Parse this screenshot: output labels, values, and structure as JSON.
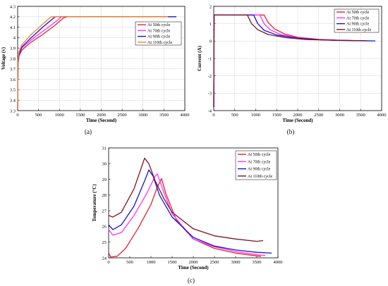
{
  "chart_data": [
    {
      "id": "voltage",
      "type": "line",
      "caption": "(a)",
      "xlabel": "Time (Second)",
      "ylabel": "Voltage (v)",
      "xlim": [
        0,
        4000
      ],
      "ylim": [
        3.3,
        4.3
      ],
      "xticks": [
        0,
        500,
        1000,
        1500,
        2000,
        2500,
        3000,
        3500,
        4000
      ],
      "yticks": [
        3.3,
        3.4,
        3.5,
        3.6,
        3.7,
        3.8,
        3.9,
        4.0,
        4.1,
        4.2,
        4.3
      ],
      "ytick_labels": [
        "3.3",
        "3.4",
        "3.5",
        "3.6",
        "3.7",
        "3.8",
        "3.9",
        "4",
        "4.1",
        "4.2",
        "4.3"
      ],
      "grid": true,
      "legend_position": "top-right",
      "series": [
        {
          "name": "At 50th cycle",
          "color": "#e8212b",
          "x": [
            0,
            10,
            30,
            100,
            300,
            600,
            900,
            1100,
            1200,
            1500,
            2500,
            3500,
            3600
          ],
          "y": [
            3.3,
            3.75,
            3.82,
            3.88,
            3.95,
            4.03,
            4.12,
            4.19,
            4.2,
            4.2,
            4.2,
            4.2,
            4.2
          ]
        },
        {
          "name": "At 70th cycle",
          "color": "#ff30ff",
          "x": [
            0,
            10,
            30,
            100,
            300,
            600,
            900,
            1050,
            1100,
            1500,
            2500,
            3500,
            3650
          ],
          "y": [
            3.3,
            3.75,
            3.83,
            3.9,
            3.97,
            4.06,
            4.15,
            4.2,
            4.2,
            4.2,
            4.2,
            4.2,
            4.2
          ]
        },
        {
          "name": "At 90th cycle",
          "color": "#1313d4",
          "x": [
            0,
            10,
            30,
            100,
            300,
            600,
            900,
            950,
            1500,
            2500,
            3500,
            3800
          ],
          "y": [
            3.3,
            3.76,
            3.84,
            3.91,
            3.99,
            4.1,
            4.2,
            4.2,
            4.2,
            4.2,
            4.2,
            4.2
          ]
        },
        {
          "name": "At 110th cycle",
          "color": "#f28424",
          "x": [
            0,
            10,
            30,
            100,
            300,
            600,
            800,
            850,
            1500,
            2500,
            3500,
            3600
          ],
          "y": [
            3.3,
            3.78,
            3.86,
            3.93,
            4.02,
            4.13,
            4.2,
            4.2,
            4.2,
            4.2,
            4.2,
            4.2
          ]
        }
      ]
    },
    {
      "id": "current",
      "type": "line",
      "caption": "(b)",
      "xlabel": "Time (Second)",
      "ylabel": "Current (A)",
      "xlim": [
        0,
        4000
      ],
      "ylim": [
        -4,
        2
      ],
      "xticks": [
        0,
        500,
        1000,
        1500,
        2000,
        2500,
        3000,
        3500,
        4000
      ],
      "yticks": [
        -4,
        -3,
        -2,
        -1,
        0,
        1,
        2
      ],
      "ytick_labels": [
        "-4",
        "-3",
        "-2",
        "-1",
        "0",
        "1",
        "2"
      ],
      "grid": true,
      "legend_position": "top-right",
      "series": [
        {
          "name": "At 50th cycle",
          "color": "#e8212b",
          "x": [
            0,
            8,
            15,
            1200,
            1300,
            1450,
            1700,
            2000,
            2500,
            3000,
            3500,
            3600
          ],
          "y": [
            -3.8,
            1.5,
            1.5,
            1.5,
            1.05,
            0.7,
            0.4,
            0.22,
            0.1,
            0.05,
            0.02,
            0.02
          ]
        },
        {
          "name": "At 70th cycle",
          "color": "#ff30ff",
          "x": [
            0,
            8,
            15,
            1100,
            1200,
            1350,
            1600,
            2000,
            2500,
            3000,
            3500,
            3650
          ],
          "y": [
            -3.8,
            1.5,
            1.5,
            1.5,
            1.0,
            0.65,
            0.37,
            0.18,
            0.08,
            0.04,
            0.02,
            0.02
          ]
        },
        {
          "name": "At 90th cycle",
          "color": "#1313d4",
          "x": [
            0,
            8,
            15,
            950,
            1050,
            1200,
            1500,
            2000,
            2500,
            3000,
            3500,
            3850
          ],
          "y": [
            -3.8,
            1.5,
            1.5,
            1.5,
            1.0,
            0.62,
            0.35,
            0.16,
            0.08,
            0.04,
            0.02,
            0.01
          ]
        },
        {
          "name": "At 110th cycle",
          "color": "#7b1328",
          "x": [
            0,
            8,
            15,
            800,
            900,
            1050,
            1300,
            1700,
            2200,
            3000,
            3500,
            3600
          ],
          "y": [
            -3.8,
            1.5,
            1.5,
            1.5,
            1.0,
            0.65,
            0.38,
            0.2,
            0.09,
            0.04,
            0.02,
            0.02
          ]
        }
      ]
    },
    {
      "id": "temperature",
      "type": "line",
      "caption": "(c)",
      "xlabel": "Time (Second)",
      "ylabel": "Temperature (°C)",
      "xlim": [
        0,
        4000
      ],
      "ylim": [
        24,
        31
      ],
      "xticks": [
        0,
        500,
        1000,
        1500,
        2000,
        2500,
        3000,
        3500,
        4000
      ],
      "yticks": [
        24,
        25,
        26,
        27,
        28,
        29,
        30,
        31
      ],
      "ytick_labels": [
        "24",
        "25",
        "26",
        "27",
        "28",
        "29",
        "30",
        "31"
      ],
      "grid": false,
      "legend_position": "top-right",
      "series": [
        {
          "name": "At 50th cycle",
          "color": "#e8212b",
          "x": [
            0,
            50,
            200,
            400,
            700,
            1000,
            1150,
            1250,
            1350,
            1600,
            2000,
            2500,
            3000,
            3500,
            3600
          ],
          "y": [
            24.3,
            24.05,
            24.1,
            24.6,
            25.9,
            27.4,
            28.5,
            29.05,
            28.1,
            26.4,
            25.2,
            24.6,
            24.3,
            24.12,
            24.1
          ]
        },
        {
          "name": "At 70th cycle",
          "color": "#ff30ff",
          "x": [
            0,
            100,
            300,
            600,
            900,
            1100,
            1150,
            1300,
            1500,
            2000,
            2500,
            3000,
            3500,
            3700
          ],
          "y": [
            25.8,
            25.45,
            25.6,
            26.7,
            28.1,
            29.2,
            29.35,
            28.2,
            26.8,
            25.2,
            24.7,
            24.4,
            24.2,
            24.15
          ]
        },
        {
          "name": "At 90th cycle",
          "color": "#1313d4",
          "x": [
            0,
            100,
            300,
            600,
            850,
            950,
            1050,
            1200,
            1500,
            2000,
            2500,
            3000,
            3500,
            3850
          ],
          "y": [
            26.1,
            25.8,
            26.1,
            27.3,
            28.9,
            29.6,
            29.2,
            28.0,
            26.6,
            25.3,
            24.75,
            24.5,
            24.35,
            24.3
          ]
        },
        {
          "name": "At 110th cycle",
          "color": "#7b1328",
          "x": [
            0,
            100,
            300,
            600,
            850,
            950,
            1100,
            1300,
            1500,
            2000,
            2500,
            3000,
            3500,
            3650
          ],
          "y": [
            26.7,
            26.6,
            26.9,
            28.4,
            30.35,
            30.0,
            28.9,
            27.8,
            26.9,
            25.85,
            25.4,
            25.2,
            25.05,
            25.1
          ]
        }
      ]
    }
  ]
}
